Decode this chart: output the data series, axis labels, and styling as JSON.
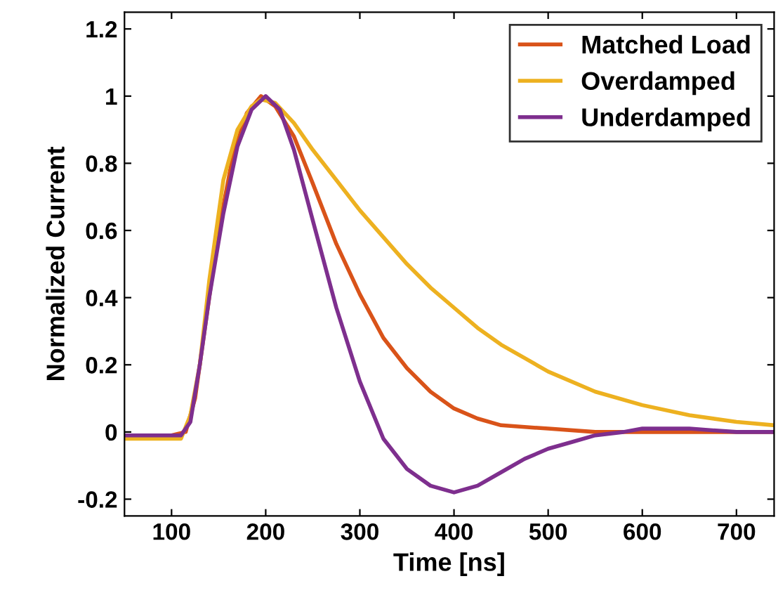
{
  "chart_data": {
    "type": "line",
    "xlabel": "Time [ns]",
    "ylabel": "Normalized Current",
    "xlim": [
      50,
      740
    ],
    "ylim": [
      -0.25,
      1.25
    ],
    "xticks": [
      100,
      200,
      300,
      400,
      500,
      600,
      700
    ],
    "yticks": [
      -0.2,
      0,
      0.2,
      0.4,
      0.6,
      0.8,
      1,
      1.2
    ],
    "grid": false,
    "legend": "top right",
    "line_style": "solid",
    "marker": "none",
    "series": [
      {
        "name": "Matched Load",
        "color": "#d95319",
        "x": [
          50,
          100,
          115,
          125,
          135,
          150,
          165,
          180,
          195,
          210,
          230,
          250,
          275,
          300,
          325,
          350,
          375,
          400,
          425,
          450,
          500,
          550,
          650,
          740
        ],
        "values": [
          -0.01,
          -0.01,
          0.0,
          0.1,
          0.3,
          0.6,
          0.82,
          0.95,
          1.0,
          0.97,
          0.88,
          0.74,
          0.56,
          0.41,
          0.28,
          0.19,
          0.12,
          0.07,
          0.04,
          0.02,
          0.01,
          0.0,
          0.0,
          0.0
        ]
      },
      {
        "name": "Overdamped",
        "color": "#edb120",
        "x": [
          50,
          110,
          120,
          130,
          140,
          155,
          170,
          185,
          195,
          210,
          230,
          250,
          275,
          300,
          325,
          350,
          375,
          400,
          425,
          450,
          475,
          500,
          550,
          600,
          650,
          700,
          740
        ],
        "values": [
          -0.02,
          -0.02,
          0.05,
          0.2,
          0.45,
          0.75,
          0.9,
          0.97,
          0.99,
          0.98,
          0.92,
          0.84,
          0.75,
          0.66,
          0.58,
          0.5,
          0.43,
          0.37,
          0.31,
          0.26,
          0.22,
          0.18,
          0.12,
          0.08,
          0.05,
          0.03,
          0.02
        ]
      },
      {
        "name": "Underdamped",
        "color": "#7e2f8e",
        "x": [
          50,
          110,
          120,
          130,
          140,
          155,
          170,
          185,
          200,
          215,
          230,
          250,
          275,
          300,
          325,
          350,
          375,
          400,
          425,
          450,
          475,
          500,
          525,
          550,
          580,
          600,
          650,
          700,
          740
        ],
        "values": [
          -0.01,
          -0.01,
          0.03,
          0.2,
          0.4,
          0.65,
          0.85,
          0.96,
          1.0,
          0.96,
          0.84,
          0.63,
          0.37,
          0.15,
          -0.02,
          -0.11,
          -0.16,
          -0.18,
          -0.16,
          -0.12,
          -0.08,
          -0.05,
          -0.03,
          -0.01,
          0.0,
          0.01,
          0.01,
          0.0,
          0.0
        ]
      }
    ]
  }
}
